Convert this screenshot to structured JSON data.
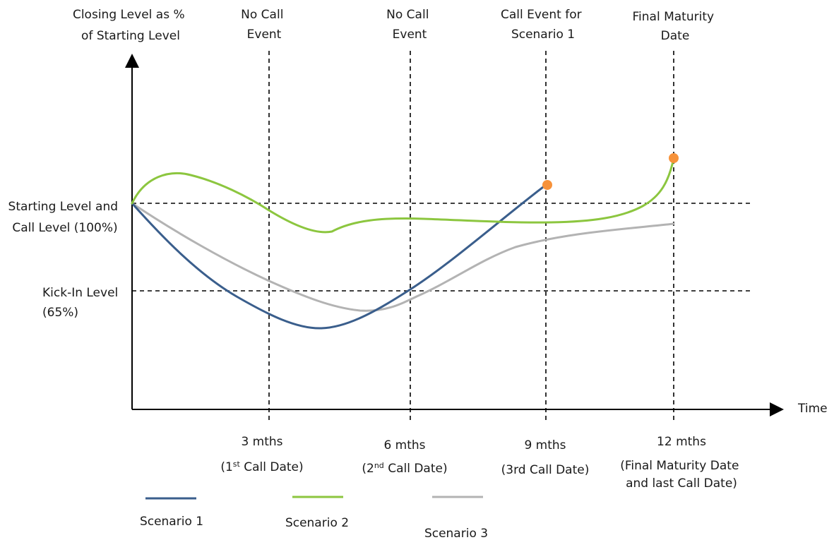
{
  "y_axis_label": [
    "Closing Level as %",
    "of Starting Level"
  ],
  "x_axis_label": "Time",
  "level_labels": {
    "starting": [
      "Starting Level and",
      "Call Level (100%)"
    ],
    "kickin": [
      "Kick-In Level",
      "(65%)"
    ]
  },
  "event_labels": [
    [
      "No Call",
      "Event"
    ],
    [
      "No Call",
      "Event"
    ],
    [
      "Call Event for",
      "Scenario 1"
    ],
    [
      "Final Maturity",
      "Date"
    ]
  ],
  "time_labels": [
    {
      "main": "3 mths",
      "pre": "(1",
      "sup": "st",
      "post": " Call Date)"
    },
    {
      "main": "6 mths",
      "pre": "(2",
      "sup": "nd",
      "post": " Call Date)"
    },
    {
      "main": "9 mths",
      "pre": "(3rd Call Date)",
      "sup": "",
      "post": ""
    },
    {
      "main": "12 mths",
      "lines": [
        "(Final Maturity Date",
        "and last Call Date)"
      ]
    }
  ],
  "legend": [
    {
      "name": "Scenario 1",
      "color": "#3a5e8c"
    },
    {
      "name": "Scenario 2",
      "color": "#8cc63f"
    },
    {
      "name": "Scenario 3",
      "color": "#b3b3b3"
    }
  ],
  "colors": {
    "event_marker": "#f7923a"
  }
}
